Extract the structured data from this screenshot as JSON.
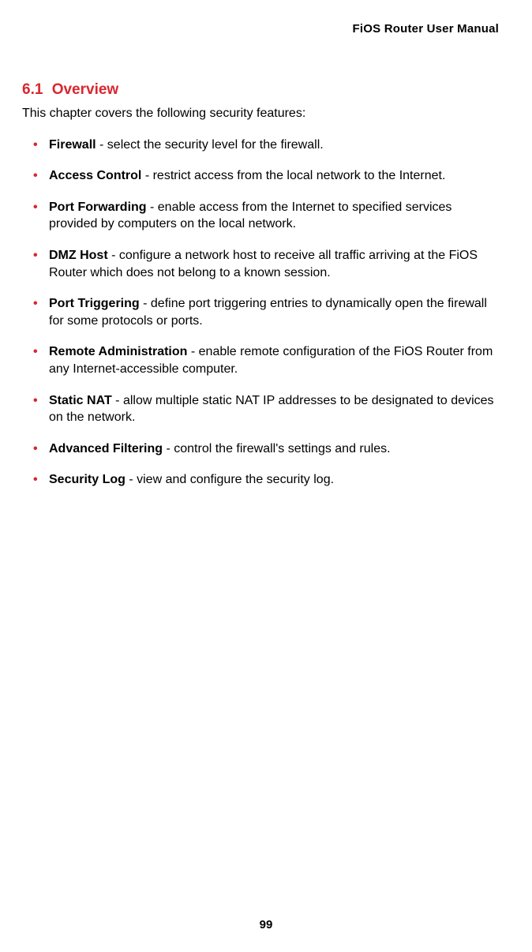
{
  "header": {
    "title": "FiOS Router User Manual"
  },
  "section": {
    "number": "6.1",
    "title": "Overview"
  },
  "intro": "This chapter covers the following security features:",
  "bullet_glyph": "•",
  "bullet_color": "#d9262f",
  "heading_color": "#d9262f",
  "text_color": "#000000",
  "background_color": "#ffffff",
  "body_fontsize": 16,
  "heading_fontsize": 19,
  "features": [
    {
      "term": "Firewall",
      "desc": " - select the security level for the firewall."
    },
    {
      "term": "Access Control",
      "desc": " - restrict access from the local network to the Internet."
    },
    {
      "term": "Port Forwarding",
      "desc": " - enable access from the Internet to specified services provided by computers on the local network."
    },
    {
      "term": "DMZ Host",
      "desc": " - configure a network host to receive all traffic arriving at the FiOS Router which does not belong to a known session."
    },
    {
      "term": "Port Triggering",
      "desc": " - define port triggering entries to dynamically open the firewall for some protocols or ports."
    },
    {
      "term": "Remote Administration",
      "desc": " - enable remote configuration of the FiOS Router from any Internet-accessible computer."
    },
    {
      "term": "Static NAT",
      "desc": " - allow multiple static NAT IP addresses to be designated to devices on the network."
    },
    {
      "term": "Advanced Filtering",
      "desc": " - control the firewall's settings and rules."
    },
    {
      "term": "Security Log",
      "desc": " - view and configure the security log."
    }
  ],
  "page_number": "99"
}
